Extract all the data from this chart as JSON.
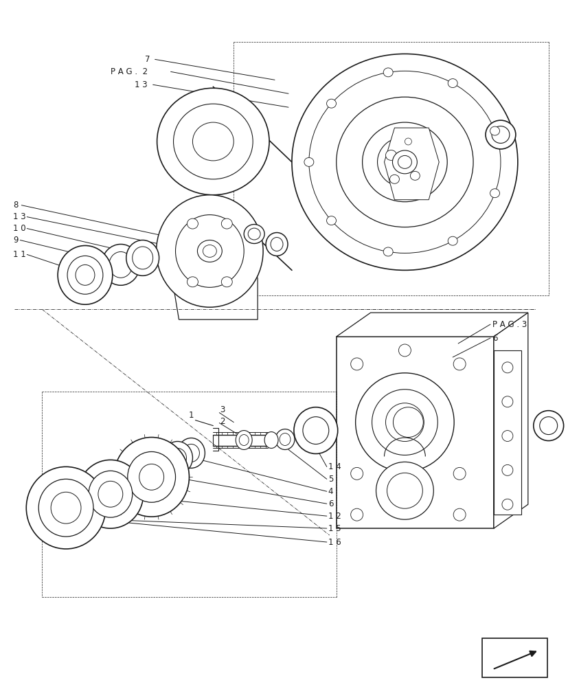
{
  "bg_color": "#ffffff",
  "lc": "#1a1a1a",
  "fig_width": 8.28,
  "fig_height": 10.0,
  "dpi": 100,
  "fs": 8.5,
  "lw_main": 0.9,
  "lw_thin": 0.5,
  "lw_leader": 0.7
}
